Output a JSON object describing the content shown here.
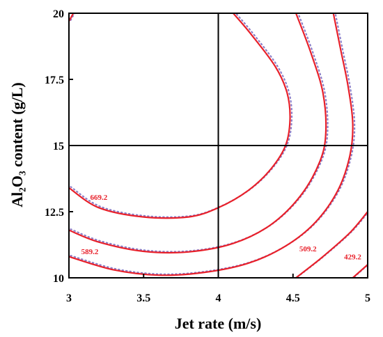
{
  "colors": {
    "contour": "#e8202a",
    "dotted": "#8c7fc8",
    "axis": "#000000"
  },
  "chart_data": {
    "type": "contour",
    "xlabel": "Jet rate (m/s)",
    "ylabel": "Al₂O₃ content (g/L)",
    "xlim": [
      3,
      5
    ],
    "ylim": [
      10,
      20
    ],
    "x_ticks": [
      "3",
      "3.5",
      "4",
      "4.5",
      "5"
    ],
    "y_ticks": [
      "10",
      "12.5",
      "15",
      "17.5",
      "20"
    ],
    "x_tick_values": [
      3,
      3.5,
      4,
      4.5,
      5
    ],
    "y_tick_values": [
      10,
      12.5,
      15,
      17.5,
      20
    ],
    "crosshair": {
      "x": 4,
      "y": 15
    },
    "contours": [
      {
        "level": "669.2",
        "points": [
          [
            3.0,
            13.4
          ],
          [
            3.2,
            12.65
          ],
          [
            3.5,
            12.3
          ],
          [
            3.8,
            12.3
          ],
          [
            4.0,
            12.65
          ],
          [
            4.2,
            13.3
          ],
          [
            4.35,
            14.1
          ],
          [
            4.45,
            15.0
          ],
          [
            4.48,
            16.0
          ],
          [
            4.46,
            17.0
          ],
          [
            4.38,
            18.0
          ],
          [
            4.22,
            19.2
          ],
          [
            4.1,
            20.0
          ]
        ]
      },
      {
        "level": "",
        "points": [
          [
            3.0,
            11.8
          ],
          [
            3.2,
            11.35
          ],
          [
            3.5,
            11.0
          ],
          [
            3.8,
            10.98
          ],
          [
            4.1,
            11.3
          ],
          [
            4.35,
            12.0
          ],
          [
            4.55,
            13.1
          ],
          [
            4.68,
            14.4
          ],
          [
            4.72,
            15.5
          ],
          [
            4.7,
            17.0
          ],
          [
            4.62,
            18.5
          ],
          [
            4.52,
            20.0
          ]
        ]
      },
      {
        "level": "589.2",
        "points": [
          [
            3.0,
            10.8
          ],
          [
            3.3,
            10.3
          ],
          [
            3.6,
            10.1
          ],
          [
            3.9,
            10.2
          ],
          [
            4.2,
            10.55
          ],
          [
            4.45,
            11.2
          ],
          [
            4.65,
            12.1
          ],
          [
            4.8,
            13.3
          ],
          [
            4.88,
            14.6
          ],
          [
            4.9,
            15.8
          ],
          [
            4.87,
            17.2
          ],
          [
            4.82,
            18.6
          ],
          [
            4.77,
            20.0
          ]
        ]
      },
      {
        "level": "509.2",
        "points": [
          [
            4.52,
            10.0
          ],
          [
            4.7,
            10.8
          ],
          [
            4.88,
            11.7
          ],
          [
            5.0,
            12.5
          ]
        ]
      },
      {
        "level": "429.2",
        "points": [
          [
            4.9,
            10.0
          ],
          [
            5.0,
            10.5
          ]
        ]
      },
      {
        "level": "",
        "points": [
          [
            3.0,
            19.7
          ],
          [
            3.03,
            20.0
          ]
        ]
      }
    ],
    "contour_labels": [
      {
        "text": "669.2",
        "x": 3.2,
        "y": 12.95
      },
      {
        "text": "589.2",
        "x": 3.14,
        "y": 10.9
      },
      {
        "text": "509.2",
        "x": 4.6,
        "y": 11.0
      },
      {
        "text": "429.2",
        "x": 4.9,
        "y": 10.7
      }
    ]
  }
}
